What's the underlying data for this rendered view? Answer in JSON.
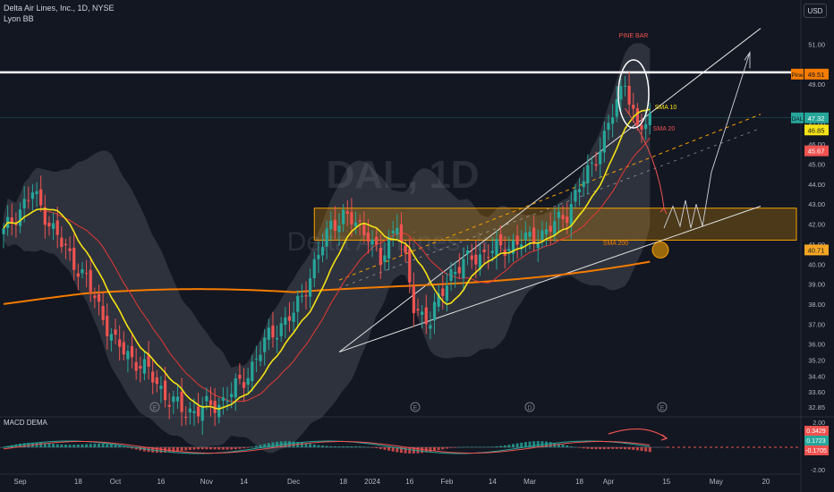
{
  "header": {
    "title": "Delta Air Lines, Inc., 1D, NYSE",
    "indicator": "Lyon BB",
    "currency_button": "USD"
  },
  "watermark": {
    "symbol": "DAL, 1D",
    "name": "Delta Air Lines, Inc."
  },
  "colors": {
    "background": "#131722",
    "up": "#26a69a",
    "down": "#ef5350",
    "sma10": "#f5e216",
    "sma20": "#e53935",
    "sma200": "#f57c00",
    "band": "#787b86",
    "zone": "#f59f00",
    "channel": "#e0e0e0"
  },
  "chart_data": [
    {
      "type": "candlestick",
      "price_axis": {
        "range": [
          32.4,
          52.1
        ],
        "labels": [
          "51.00",
          "49.00",
          "47.00",
          "46.00",
          "45.00",
          "44.00",
          "43.00",
          "42.00",
          "41.00",
          "40.00",
          "39.00",
          "38.00",
          "37.00",
          "36.00",
          "35.20",
          "34.40",
          "33.60",
          "32.85"
        ]
      },
      "time_axis": {
        "labels": [
          "Sep",
          "18",
          "Oct",
          "16",
          "Nov",
          "14",
          "Dec",
          "18",
          "2024",
          "16",
          "Feb",
          "14",
          "Mar",
          "18",
          "Apr",
          "15",
          "May",
          "20"
        ],
        "bar_index": [
          4,
          18,
          27,
          38,
          49,
          58,
          70,
          82,
          89,
          98,
          107,
          118,
          127,
          139,
          146,
          160,
          172,
          184
        ]
      },
      "ohlc_summary": {
        "start": "2023-08-31",
        "end": "2024-04-10",
        "key_points": [
          {
            "label": "Sep high",
            "value": 44.0
          },
          {
            "label": "Oct low",
            "value": 32.6
          },
          {
            "label": "Dec high",
            "value": 42.7
          },
          {
            "label": "Jan low",
            "value": 36.8
          },
          {
            "label": "Apr high",
            "value": 49.5
          },
          {
            "label": "last close",
            "value": 47.32
          }
        ]
      },
      "annotations": [
        {
          "text": "PINE BAR",
          "color": "#ef5350"
        },
        {
          "text": "SMA 10",
          "color": "#f5e216"
        },
        {
          "text": "SMA 20",
          "color": "#ef5350"
        },
        {
          "text": "SMA 200",
          "color": "#f57c00"
        }
      ],
      "horizontal_levels": [
        {
          "label": "Pine",
          "value": "49.51",
          "color": "#f57c00"
        },
        {
          "label": "",
          "value": "40.71",
          "color": "#f5a623"
        }
      ],
      "zone": {
        "low": 41.2,
        "high": 42.8
      },
      "price_tags": [
        {
          "symbol": "DAL",
          "value": "47.32",
          "color": "#26a69a"
        },
        {
          "value": "46.85",
          "color": "#f5e216"
        },
        {
          "value": "45.67",
          "color": "#ef5350"
        }
      ]
    },
    {
      "type": "bar",
      "name": "MACD DEMA",
      "axis_labels": [
        "2.00",
        "-2.00"
      ],
      "tags": [
        {
          "value": "0.3429",
          "color": "#ef5350"
        },
        {
          "value": "0.1723",
          "color": "#26a69a"
        },
        {
          "value": "-0.1705",
          "color": "#ef5350"
        }
      ]
    }
  ]
}
